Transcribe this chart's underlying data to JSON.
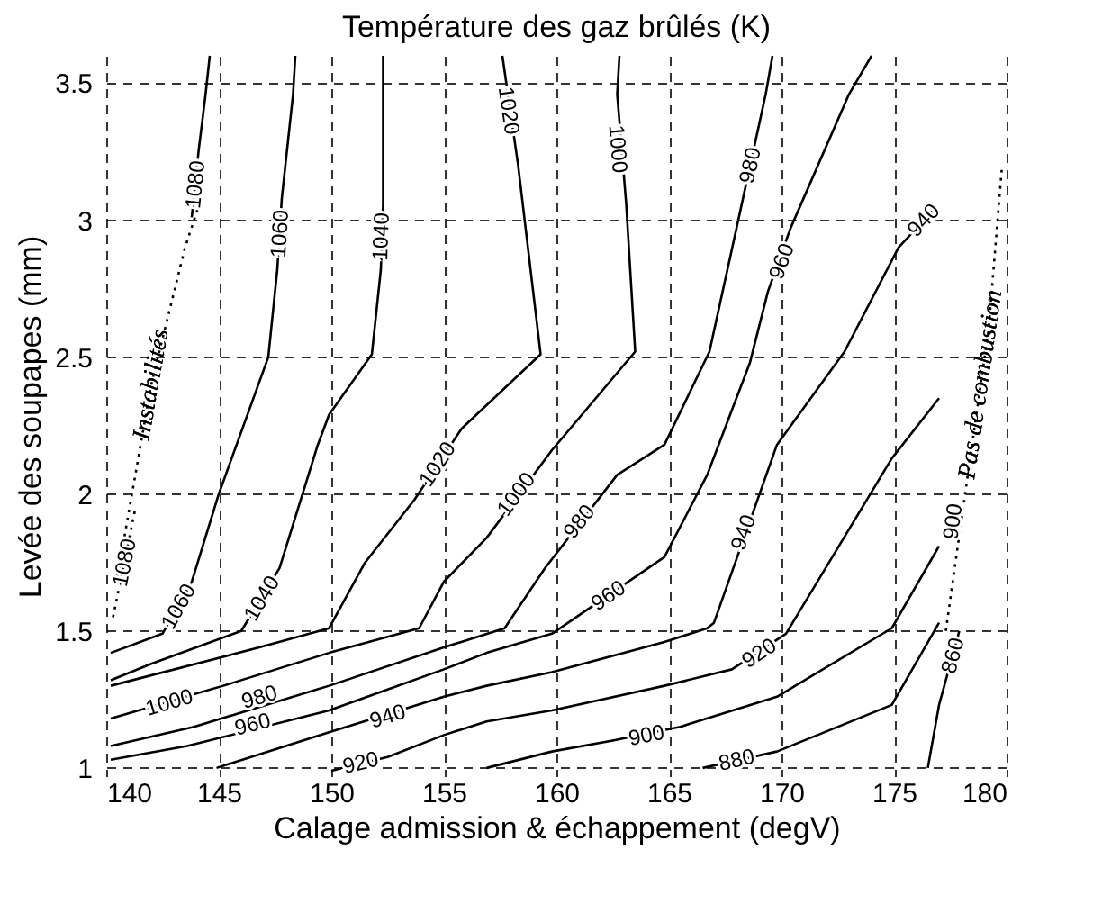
{
  "chart_data": {
    "type": "line",
    "title": "Température des gaz brûlés (K)",
    "xlabel": "Calage admission & échappement (degV)",
    "ylabel": "Levée des soupapes (mm)",
    "xlim": [
      140,
      180
    ],
    "ylim": [
      0.97,
      3.6
    ],
    "xticks": [
      140,
      145,
      150,
      155,
      160,
      165,
      170,
      175,
      180
    ],
    "yticks": [
      1,
      1.5,
      2,
      2.5,
      3,
      3.5
    ],
    "grid": true,
    "series": [
      {
        "color": "#000000",
        "x": [
          144.6,
          144.4,
          144.1,
          143.8
        ],
        "values": [
          3.6,
          3.45,
          3.25,
          3.01
        ]
      },
      {
        "color": "#000000",
        "line_style": "dotted",
        "x": [
          140.3,
          141.3
        ],
        "values": [
          1.55,
          1.95
        ]
      },
      {
        "color": "#000000",
        "x": [
          148.4,
          148.3,
          147.8,
          147.6,
          147.2,
          145.0,
          143.8,
          142.5,
          140.2
        ],
        "values": [
          3.6,
          3.46,
          3.08,
          2.82,
          2.5,
          2.0,
          1.68,
          1.49,
          1.42
        ]
      },
      {
        "color": "#000000",
        "x": [
          152.3,
          152.3,
          152.2,
          151.8,
          149.9,
          149.4,
          147.7,
          146.0,
          142.0,
          140.2
        ],
        "values": [
          3.6,
          3.06,
          2.82,
          2.51,
          2.29,
          2.18,
          1.73,
          1.5,
          1.38,
          1.32
        ]
      },
      {
        "color": "#000000",
        "x": [
          157.6,
          158.3,
          159.3,
          155.8,
          153.7,
          151.5,
          149.9,
          146.8,
          140.2
        ],
        "values": [
          3.6,
          3.2,
          2.51,
          2.24,
          1.98,
          1.75,
          1.51,
          1.44,
          1.3
        ]
      },
      {
        "color": "#000000",
        "x": [
          162.8,
          162.7,
          163.1,
          163.5,
          159.8,
          156.9,
          155.0,
          153.9,
          149.9,
          145.2,
          140.2
        ],
        "values": [
          3.6,
          3.46,
          3.06,
          2.52,
          2.16,
          1.84,
          1.68,
          1.51,
          1.42,
          1.3,
          1.18
        ]
      },
      {
        "color": "#000000",
        "x": [
          169.6,
          169.3,
          168.0,
          166.8,
          164.8,
          162.7,
          159.5,
          157.7,
          155.0,
          149.9,
          143.9,
          140.2
        ],
        "values": [
          3.6,
          3.46,
          2.97,
          2.52,
          2.18,
          2.07,
          1.73,
          1.51,
          1.44,
          1.3,
          1.15,
          1.08
        ]
      },
      {
        "color": "#000000",
        "x": [
          174.0,
          173.0,
          170.4,
          169.4,
          168.6,
          166.7,
          164.8,
          159.8,
          156.9,
          155.0,
          149.9,
          143.6,
          140.2
        ],
        "values": [
          3.6,
          3.46,
          2.97,
          2.74,
          2.48,
          2.07,
          1.77,
          1.49,
          1.42,
          1.36,
          1.21,
          1.08,
          1.03
        ]
      },
      {
        "color": "#000000",
        "x": [
          176.9,
          175.2,
          172.8,
          169.8,
          167.0,
          166.7,
          164.8,
          159.8,
          156.9,
          155.0,
          149.9,
          144.9
        ],
        "values": [
          3.05,
          2.9,
          2.52,
          2.18,
          1.53,
          1.51,
          1.46,
          1.35,
          1.3,
          1.26,
          1.13,
          1.0
        ]
      },
      {
        "color": "#000000",
        "x": [
          177.0,
          174.9,
          170.2,
          167.8,
          164.8,
          159.8,
          156.9,
          155.0,
          152.5,
          150.0
        ],
        "values": [
          2.35,
          2.13,
          1.49,
          1.36,
          1.3,
          1.21,
          1.17,
          1.12,
          1.04,
          0.99
        ]
      },
      {
        "color": "#000000",
        "x": [
          177.0,
          174.9,
          169.8,
          165.5,
          162.5,
          159.8,
          156.9
        ],
        "values": [
          1.81,
          1.51,
          1.26,
          1.15,
          1.1,
          1.06,
          1.0
        ]
      },
      {
        "color": "#000000",
        "x": [
          177.0,
          174.9,
          169.8,
          166.5
        ],
        "values": [
          1.53,
          1.23,
          1.06,
          1.0
        ]
      },
      {
        "color": "#000000",
        "x": [
          177.9,
          177.0,
          176.5
        ],
        "values": [
          1.5,
          1.23,
          1.0
        ]
      },
      {
        "color": "#000000",
        "line_style": "dotted",
        "x": [
          140.5,
          142.0,
          143.5,
          144.3
        ],
        "values": [
          1.7,
          2.4,
          2.9,
          3.1
        ]
      },
      {
        "color": "#000000",
        "line_style": "dotted",
        "x": [
          177.3,
          178.5,
          179.2,
          179.8
        ],
        "values": [
          1.5,
          2.2,
          2.6,
          3.2
        ]
      }
    ],
    "annotations": [
      {
        "text": "1080",
        "x": 143.95,
        "y": 3.13
      },
      {
        "text": "1080",
        "x": 140.8,
        "y": 1.75
      },
      {
        "text": "1060",
        "x": 147.7,
        "y": 2.95
      },
      {
        "text": "1060",
        "x": 143.2,
        "y": 1.59
      },
      {
        "text": "1040",
        "x": 152.2,
        "y": 2.94
      },
      {
        "text": "1040",
        "x": 146.9,
        "y": 1.62
      },
      {
        "text": "1020",
        "x": 157.9,
        "y": 3.4
      },
      {
        "text": "1020",
        "x": 154.7,
        "y": 2.11
      },
      {
        "text": "1000",
        "x": 162.75,
        "y": 3.26
      },
      {
        "text": "1000",
        "x": 158.2,
        "y": 2.0
      },
      {
        "text": "1000",
        "x": 142.8,
        "y": 1.24
      },
      {
        "text": "980",
        "x": 168.6,
        "y": 3.2
      },
      {
        "text": "980",
        "x": 161.0,
        "y": 1.9
      },
      {
        "text": "980",
        "x": 146.8,
        "y": 1.26
      },
      {
        "text": "960",
        "x": 170.0,
        "y": 2.85
      },
      {
        "text": "960",
        "x": 162.3,
        "y": 1.63
      },
      {
        "text": "960",
        "x": 146.5,
        "y": 1.16
      },
      {
        "text": "940",
        "x": 176.3,
        "y": 3.0
      },
      {
        "text": "940",
        "x": 168.3,
        "y": 1.86
      },
      {
        "text": "940",
        "x": 152.5,
        "y": 1.19
      },
      {
        "text": "920",
        "x": 169.0,
        "y": 1.42
      },
      {
        "text": "920",
        "x": 151.3,
        "y": 1.02
      },
      {
        "text": "900",
        "x": 177.6,
        "y": 1.9
      },
      {
        "text": "900",
        "x": 164.0,
        "y": 1.12
      },
      {
        "text": "880",
        "x": 168.0,
        "y": 1.03
      },
      {
        "text": "860",
        "x": 177.6,
        "y": 1.41
      },
      {
        "text": "Instabilités",
        "x": 142.0,
        "y": 2.4
      },
      {
        "text": "Pas de combustion",
        "x": 178.85,
        "y": 2.4
      }
    ]
  }
}
